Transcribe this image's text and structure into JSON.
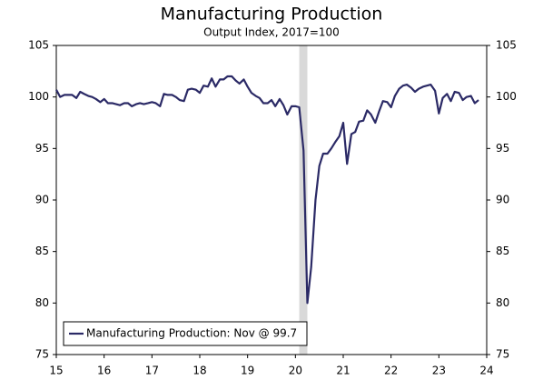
{
  "chart_data": {
    "type": "line",
    "title": "Manufacturing Production",
    "subtitle": "Output Index, 2017=100",
    "x": [
      15.0,
      15.08,
      15.17,
      15.25,
      15.33,
      15.42,
      15.5,
      15.58,
      15.67,
      15.75,
      15.83,
      15.92,
      16.0,
      16.08,
      16.17,
      16.25,
      16.33,
      16.42,
      16.5,
      16.58,
      16.67,
      16.75,
      16.83,
      16.92,
      17.0,
      17.08,
      17.17,
      17.25,
      17.33,
      17.42,
      17.5,
      17.58,
      17.67,
      17.75,
      17.83,
      17.92,
      18.0,
      18.08,
      18.17,
      18.25,
      18.33,
      18.42,
      18.5,
      18.58,
      18.67,
      18.75,
      18.83,
      18.92,
      19.0,
      19.08,
      19.17,
      19.25,
      19.33,
      19.42,
      19.5,
      19.58,
      19.67,
      19.75,
      19.83,
      19.92,
      20.0,
      20.08,
      20.17,
      20.25,
      20.33,
      20.42,
      20.5,
      20.58,
      20.67,
      20.75,
      20.83,
      20.92,
      21.0,
      21.08,
      21.17,
      21.25,
      21.33,
      21.42,
      21.5,
      21.58,
      21.67,
      21.75,
      21.83,
      21.92,
      22.0,
      22.08,
      22.17,
      22.25,
      22.33,
      22.42,
      22.5,
      22.58,
      22.67,
      22.75,
      22.83,
      22.92,
      23.0,
      23.08,
      23.17,
      23.25,
      23.33,
      23.42,
      23.5,
      23.58,
      23.67,
      23.75,
      23.83
    ],
    "series": [
      {
        "name": "Manufacturing Production: Nov @ 99.7",
        "color": "#2b2a66",
        "values": [
          100.7,
          100.0,
          100.2,
          100.2,
          100.2,
          99.9,
          100.5,
          100.3,
          100.1,
          100.0,
          99.8,
          99.5,
          99.8,
          99.4,
          99.4,
          99.3,
          99.2,
          99.4,
          99.4,
          99.1,
          99.3,
          99.4,
          99.3,
          99.4,
          99.5,
          99.4,
          99.1,
          100.3,
          100.2,
          100.2,
          100.0,
          99.7,
          99.6,
          100.7,
          100.8,
          100.7,
          100.4,
          101.1,
          101.0,
          101.8,
          101.0,
          101.7,
          101.7,
          102.0,
          102.0,
          101.6,
          101.3,
          101.7,
          101.0,
          100.4,
          100.1,
          99.9,
          99.4,
          99.4,
          99.7,
          99.1,
          99.8,
          99.2,
          98.3,
          99.1,
          99.1,
          99.0,
          94.8,
          80.0,
          83.5,
          90.0,
          93.3,
          94.5,
          94.5,
          95.0,
          95.6,
          96.2,
          97.5,
          93.5,
          96.4,
          96.6,
          97.6,
          97.7,
          98.7,
          98.3,
          97.5,
          98.6,
          99.6,
          99.5,
          99.0,
          100.1,
          100.8,
          101.1,
          101.2,
          100.9,
          100.5,
          100.8,
          101.0,
          101.1,
          101.2,
          100.6,
          98.4,
          99.9,
          100.3,
          99.6,
          100.5,
          100.4,
          99.7,
          100.0,
          100.1,
          99.4,
          99.7
        ]
      }
    ],
    "xlim": [
      15,
      24
    ],
    "xticks": [
      15,
      16,
      17,
      18,
      19,
      20,
      21,
      22,
      23,
      24
    ],
    "ylim": [
      75,
      105
    ],
    "yticks": [
      75,
      80,
      85,
      90,
      95,
      100,
      105
    ],
    "y2lim": [
      75,
      105
    ],
    "y2ticks": [
      75,
      80,
      85,
      90,
      95,
      100,
      105
    ],
    "shaded_region": [
      20.08,
      20.25
    ],
    "shade_color": "#d9d9d9",
    "legend": "lower left",
    "grid": false
  }
}
